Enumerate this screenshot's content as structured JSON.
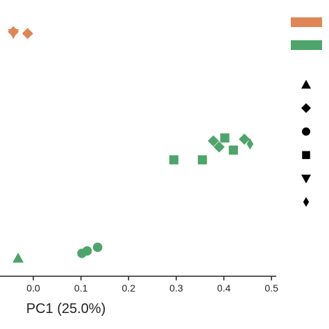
{
  "chart_data": {
    "type": "scatter",
    "title": "",
    "xlabel": "PC1 (25.0%)",
    "ylabel": "",
    "xlim": [
      -0.07,
      0.51
    ],
    "ylim": [
      0,
      1
    ],
    "x_ticks": [
      0.0,
      0.1,
      0.2,
      0.3,
      0.4,
      0.5
    ],
    "x_tick_labels": [
      "0.0",
      "0.1",
      "0.2",
      "0.3",
      "0.4",
      "0.5"
    ],
    "grid": false,
    "legend_placement": "right",
    "colors": {
      "orange": "#e08555",
      "green": "#4ea46a"
    },
    "legend_colors": [
      "#e08555",
      "#4ea46a"
    ],
    "legend_markers": [
      "triangle-up",
      "diamond",
      "circle",
      "square",
      "triangle-down",
      "thin-diamond"
    ],
    "points": [
      {
        "x": -0.042,
        "y": 0.925,
        "color": "#e08555",
        "marker": "triangle-down"
      },
      {
        "x": -0.042,
        "y": 0.932,
        "color": "#e08555",
        "marker": "diamond"
      },
      {
        "x": -0.012,
        "y": 0.925,
        "color": "#e08555",
        "marker": "diamond"
      },
      {
        "x": -0.032,
        "y": 0.0,
        "color": "#4ea46a",
        "marker": "triangle-up"
      },
      {
        "x": 0.102,
        "y": 0.02,
        "color": "#4ea46a",
        "marker": "circle"
      },
      {
        "x": 0.113,
        "y": 0.03,
        "color": "#4ea46a",
        "marker": "circle"
      },
      {
        "x": 0.135,
        "y": 0.045,
        "color": "#4ea46a",
        "marker": "circle"
      },
      {
        "x": 0.295,
        "y": 0.405,
        "color": "#4ea46a",
        "marker": "square"
      },
      {
        "x": 0.355,
        "y": 0.405,
        "color": "#4ea46a",
        "marker": "square"
      },
      {
        "x": 0.402,
        "y": 0.495,
        "color": "#4ea46a",
        "marker": "square"
      },
      {
        "x": 0.42,
        "y": 0.445,
        "color": "#4ea46a",
        "marker": "square"
      },
      {
        "x": 0.378,
        "y": 0.483,
        "color": "#4ea46a",
        "marker": "diamond"
      },
      {
        "x": 0.39,
        "y": 0.458,
        "color": "#4ea46a",
        "marker": "diamond"
      },
      {
        "x": 0.443,
        "y": 0.49,
        "color": "#4ea46a",
        "marker": "diamond"
      },
      {
        "x": 0.455,
        "y": 0.47,
        "color": "#4ea46a",
        "marker": "thin-diamond"
      }
    ]
  }
}
